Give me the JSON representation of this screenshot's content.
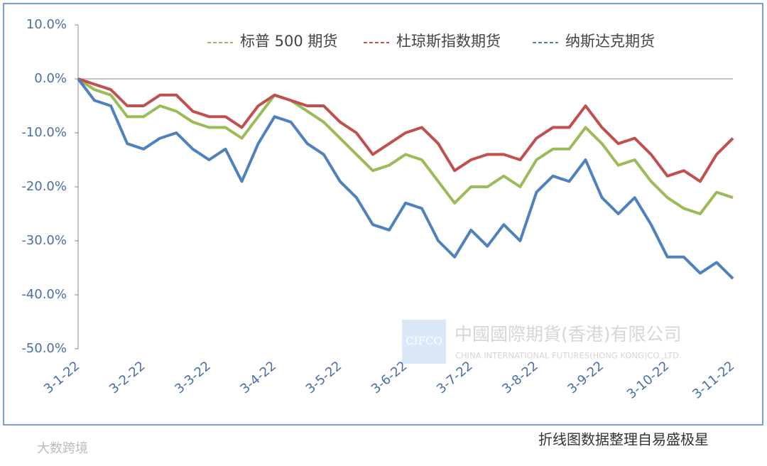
{
  "chart_data": {
    "type": "line",
    "categories": [
      "3-1-22",
      null,
      null,
      null,
      "3-2-22",
      null,
      null,
      null,
      "3-3-22",
      null,
      null,
      null,
      "3-4-22",
      null,
      null,
      null,
      "3-5-22",
      null,
      null,
      null,
      "3-6-22",
      null,
      null,
      null,
      "3-7-22",
      null,
      null,
      null,
      "3-8-22",
      null,
      null,
      null,
      "3-9-22",
      null,
      null,
      null,
      "3-10-22",
      null,
      null,
      null,
      "3-11-22"
    ],
    "series": [
      {
        "name": "标普 500 期货",
        "color": "#9bbb59",
        "values": [
          0,
          -2,
          -3,
          -7,
          -7,
          -5,
          -6,
          -8,
          -9,
          -9,
          -11,
          -7,
          -3,
          -4,
          -6,
          -8,
          -11,
          -14,
          -17,
          -16,
          -14,
          -15,
          -19,
          -23,
          -20,
          -20,
          -18,
          -20,
          -15,
          -13,
          -13,
          -9,
          -12,
          -16,
          -15,
          -19,
          -22,
          -24,
          -25,
          -21,
          -22
        ]
      },
      {
        "name": "杜琼斯指数期货",
        "color": "#c0504d",
        "values": [
          0,
          -1,
          -2,
          -5,
          -5,
          -3,
          -3,
          -6,
          -7,
          -7,
          -9,
          -5,
          -3,
          -4,
          -5,
          -5,
          -8,
          -10,
          -14,
          -12,
          -10,
          -9,
          -12,
          -17,
          -15,
          -14,
          -14,
          -15,
          -11,
          -9,
          -9,
          -5,
          -9,
          -12,
          -11,
          -14,
          -18,
          -17,
          -19,
          -14,
          -11
        ]
      },
      {
        "name": "纳斯达克期货",
        "color": "#4f81bd",
        "values": [
          0,
          -4,
          -5,
          -12,
          -13,
          -11,
          -10,
          -13,
          -15,
          -13,
          -19,
          -12,
          -7,
          -8,
          -12,
          -14,
          -19,
          -22,
          -27,
          -28,
          -23,
          -24,
          -30,
          -33,
          -28,
          -31,
          -27,
          -30,
          -21,
          -18,
          -19,
          -15,
          -22,
          -25,
          -22,
          -27,
          -33,
          -33,
          -36,
          -34,
          -37
        ]
      }
    ],
    "ylim": [
      -50,
      10
    ],
    "yticks": [
      {
        "value": 10,
        "label": "10.0%"
      },
      {
        "value": 0,
        "label": "0.0%"
      },
      {
        "value": -10,
        "label": "-10.0%"
      },
      {
        "value": -20,
        "label": "-20.0%"
      },
      {
        "value": -30,
        "label": "-30.0%"
      },
      {
        "value": -40,
        "label": "-40.0%"
      },
      {
        "value": -50,
        "label": "-50.0%"
      }
    ],
    "legend": "top"
  },
  "watermark": {
    "logo": "CIFCO",
    "name": "中國國際期貨(香港)有限公司",
    "name_en": "CHINA INTERNATIONAL FUTURES(HONG KONG)CO.,LTD."
  },
  "footer": {
    "source": "折线图数据整理自易盛极星",
    "brand": "大数跨境"
  }
}
